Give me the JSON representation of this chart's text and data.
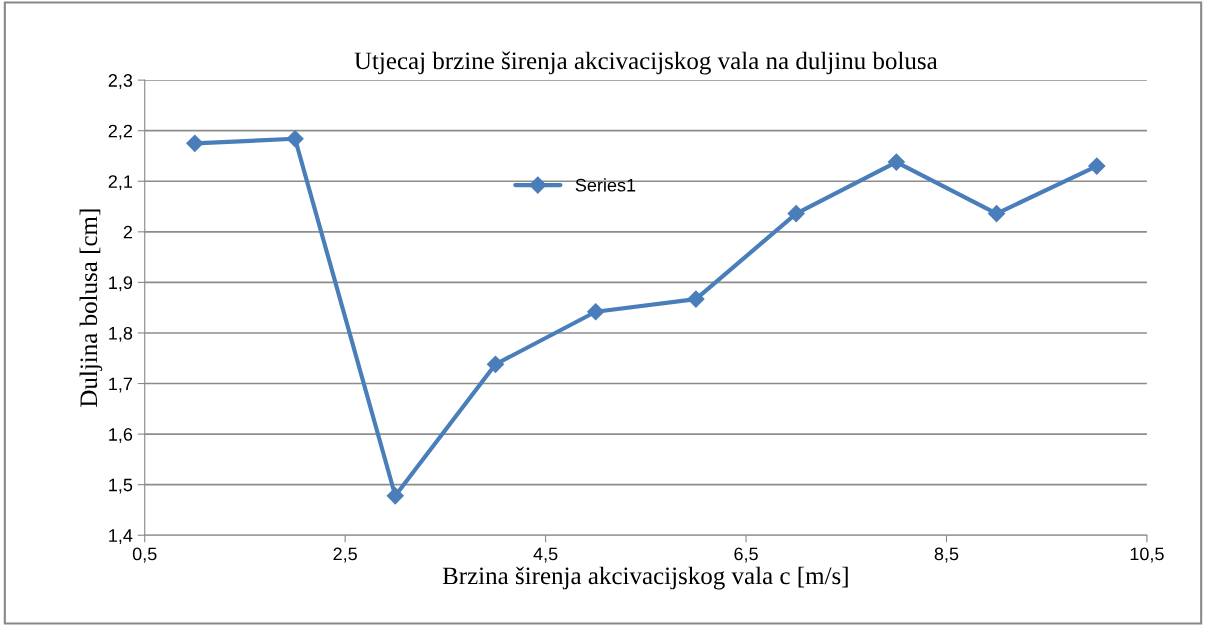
{
  "chart_data": {
    "type": "line",
    "title": "Utjecaj brzine širenja akcivacijskog vala na duljinu bolusa",
    "xlabel": "Brzina širenja akcivacijskog vala c [m/s]",
    "ylabel": "Duljina bolusa [cm]",
    "x": [
      1,
      2,
      3,
      4,
      5,
      6,
      7,
      8,
      9,
      10
    ],
    "series": [
      {
        "name": "Series1",
        "color": "#4a7ebb",
        "values": [
          2.175,
          2.184,
          1.478,
          1.738,
          1.842,
          1.867,
          2.036,
          2.138,
          2.036,
          2.13
        ]
      }
    ],
    "xlim": [
      0.5,
      10.5
    ],
    "xticks": [
      {
        "value": 0.5,
        "label": "0,5"
      },
      {
        "value": 2.5,
        "label": "2,5"
      },
      {
        "value": 4.5,
        "label": "4,5"
      },
      {
        "value": 6.5,
        "label": "6,5"
      },
      {
        "value": 8.5,
        "label": "8,5"
      },
      {
        "value": 10.5,
        "label": "10,5"
      }
    ],
    "ylim": [
      1.4,
      2.3
    ],
    "yticks": [
      {
        "value": 1.4,
        "label": "1,4"
      },
      {
        "value": 1.5,
        "label": "1,5"
      },
      {
        "value": 1.6,
        "label": "1,6"
      },
      {
        "value": 1.7,
        "label": "1,7"
      },
      {
        "value": 1.8,
        "label": "1,8"
      },
      {
        "value": 1.9,
        "label": "1,9"
      },
      2,
      {
        "value": 2.1,
        "label": "2,1"
      },
      {
        "value": 2.2,
        "label": "2,2"
      },
      {
        "value": 2.3,
        "label": "2,3"
      }
    ],
    "grid": "y",
    "legend": "top",
    "marker": "diamond",
    "line_style": "solid"
  }
}
